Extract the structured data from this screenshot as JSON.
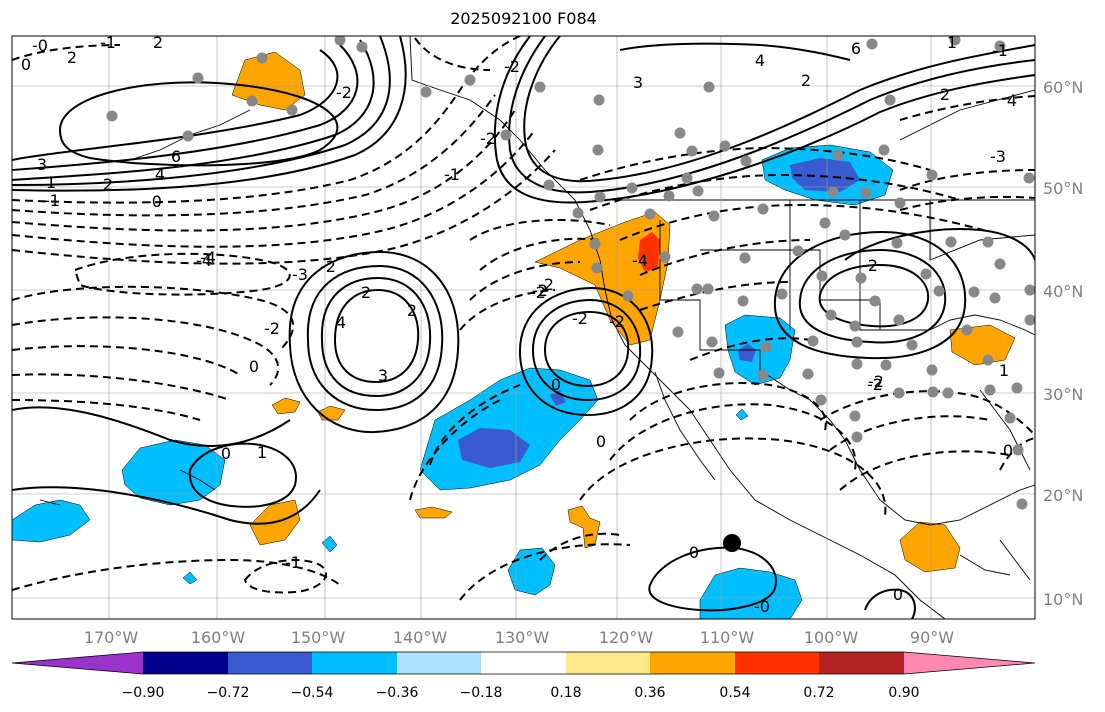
{
  "title": "2025092100 F084",
  "lon_ticks": [
    "170°W",
    "160°W",
    "150°W",
    "140°W",
    "130°W",
    "120°W",
    "110°W",
    "100°W",
    "90°W"
  ],
  "lat_ticks": [
    "60°N",
    "50°N",
    "40°N",
    "30°N",
    "20°N",
    "10°N"
  ],
  "colorbar": {
    "colors": [
      "#9933cc",
      "#00008b",
      "#3a5bd0",
      "#00bfff",
      "#aee0ff",
      "#ffffff",
      "#ffe98a",
      "#ffa500",
      "#ff3300",
      "#b22222",
      "#ff88b0"
    ],
    "labels": [
      "−0.90",
      "−0.72",
      "−0.54",
      "−0.36",
      "−0.18",
      "0.18",
      "0.36",
      "0.54",
      "0.72",
      "0.90"
    ]
  },
  "contour_labels": [
    "6",
    "4",
    "2",
    "1",
    "3",
    "2",
    "0",
    "-1",
    "-3",
    "-2",
    "-4",
    "4",
    "-4",
    "-2",
    "-3",
    "-2",
    "-1",
    "-0",
    "0",
    "-2",
    "6",
    "4",
    "2",
    "1",
    "4",
    "2",
    "3",
    "2",
    "1",
    "-2",
    "-4",
    "-2",
    "-2",
    "-2",
    "3",
    "2",
    "-2",
    "-2",
    "-1",
    "0",
    "0",
    "-1",
    "0",
    "-2",
    "-0",
    "2",
    "0",
    "-1",
    "1",
    "-2",
    "-2",
    "0",
    "0",
    "-0"
  ],
  "contour_label_colors": {
    "text": "#000000"
  },
  "icons": {
    "marker_gray": "gray-station-dot",
    "marker_black": "black-point-marker"
  }
}
